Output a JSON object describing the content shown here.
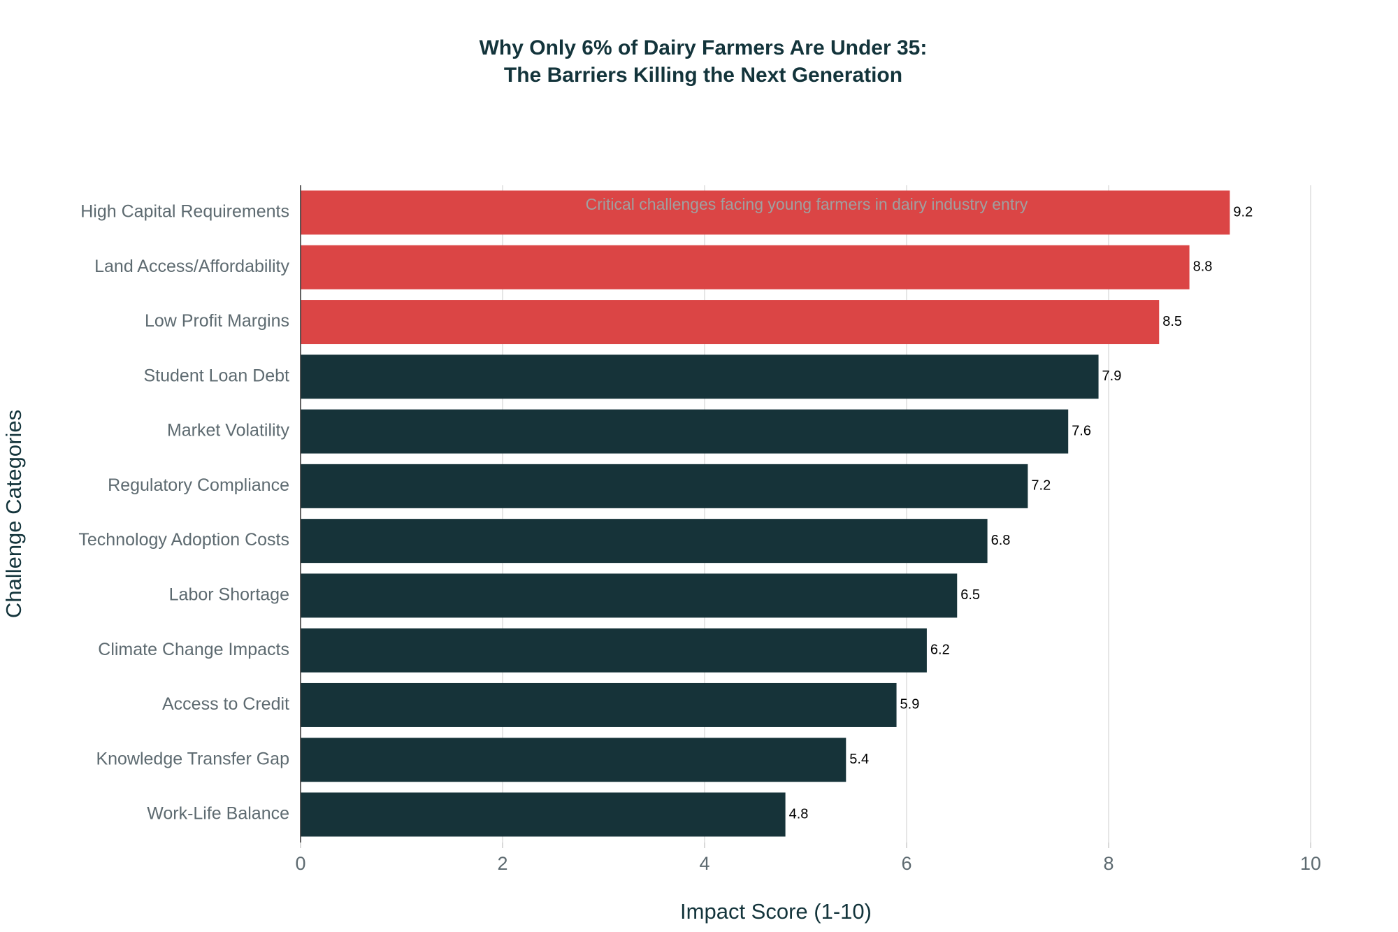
{
  "chart_data": {
    "type": "bar",
    "orientation": "horizontal",
    "title": [
      "Why Only 6% of Dairy Farmers Are Under 35:",
      "The Barriers Killing the Next Generation"
    ],
    "annotation": "Critical challenges facing young farmers in dairy industry entry",
    "x_label": "Impact Score (1-10)",
    "y_label": "Challenge Categories",
    "categories": [
      "High Capital Requirements",
      "Land Access/Affordability",
      "Low Profit Margins",
      "Student Loan Debt",
      "Market Volatility",
      "Regulatory Compliance",
      "Technology Adoption Costs",
      "Labor Shortage",
      "Climate Change Impacts",
      "Access to Credit",
      "Knowledge Transfer Gap",
      "Work-Life Balance"
    ],
    "values": [
      9.2,
      8.8,
      8.5,
      7.9,
      7.6,
      7.2,
      6.8,
      6.5,
      6.2,
      5.9,
      5.4,
      4.8
    ],
    "colors": [
      "#db4545",
      "#db4545",
      "#db4545",
      "#163339",
      "#163339",
      "#163339",
      "#163339",
      "#163339",
      "#163339",
      "#163339",
      "#163339",
      "#163339"
    ],
    "xlim": [
      0,
      10
    ],
    "xticks": [
      0,
      2,
      4,
      6,
      8,
      10
    ],
    "grid": true
  }
}
